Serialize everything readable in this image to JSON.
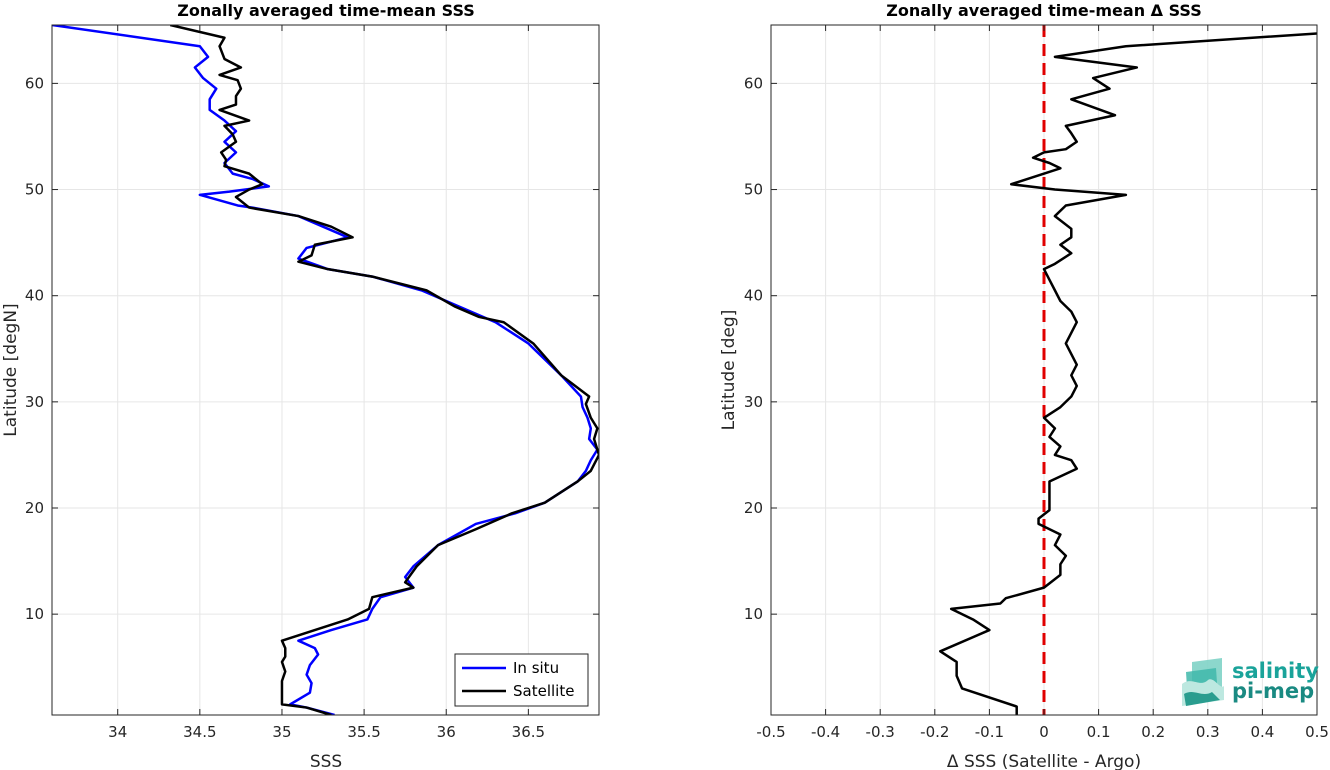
{
  "charts": [
    {
      "title": "Zonally averaged time-mean SSS",
      "xlabel": "SSS",
      "ylabel": "Latitude [degN]",
      "xlim": [
        33.6,
        36.93
      ],
      "ylim": [
        0.5,
        65.5
      ],
      "xticks": [
        34,
        34.5,
        35,
        35.5,
        36,
        36.5
      ],
      "xtick_labels": [
        "34",
        "34.5",
        "35",
        "35.5",
        "36",
        "36.5"
      ],
      "yticks": [
        10,
        20,
        30,
        40,
        50,
        60
      ],
      "ytick_labels": [
        "10",
        "20",
        "30",
        "40",
        "50",
        "60"
      ],
      "legend": {
        "entries": [
          "In situ",
          "Satellite"
        ],
        "position": "bottom-right"
      }
    },
    {
      "title": "Zonally averaged time-mean Δ SSS",
      "xlabel": "Δ SSS (Satellite - Argo)",
      "ylabel": "Latitude [deg]",
      "xlim": [
        -0.5,
        0.5
      ],
      "ylim": [
        0.5,
        65.5
      ],
      "xticks": [
        -0.5,
        -0.4,
        -0.3,
        -0.2,
        -0.1,
        0,
        0.1,
        0.2,
        0.3,
        0.4,
        0.5
      ],
      "xtick_labels": [
        "-0.5",
        "-0.4",
        "-0.3",
        "-0.2",
        "-0.1",
        "0",
        "0.1",
        "0.2",
        "0.3",
        "0.4",
        "0.5"
      ],
      "yticks": [
        10,
        20,
        30,
        40,
        50,
        60
      ],
      "ytick_labels": [
        "10",
        "20",
        "30",
        "40",
        "50",
        "60"
      ]
    }
  ],
  "logo": {
    "line1": "salinity",
    "line2": "pi-mep",
    "color": "#1aa39a"
  },
  "chart_data": [
    {
      "type": "line",
      "title": "Zonally averaged time-mean SSS",
      "xlabel": "SSS",
      "ylabel": "Latitude [degN]",
      "xlim": [
        33.6,
        36.93
      ],
      "ylim": [
        0.5,
        65.5
      ],
      "grid": true,
      "legend_position": "bottom-right",
      "series": [
        {
          "name": "In situ",
          "color": "#0000ff",
          "points": [
            [
              33.6,
              65.5
            ],
            [
              34.5,
              63.5
            ],
            [
              34.55,
              62.5
            ],
            [
              34.47,
              61.5
            ],
            [
              34.52,
              60.5
            ],
            [
              34.6,
              59.5
            ],
            [
              34.56,
              58.5
            ],
            [
              34.56,
              57.5
            ],
            [
              34.65,
              56.5
            ],
            [
              34.72,
              55.5
            ],
            [
              34.65,
              54.5
            ],
            [
              34.72,
              53.5
            ],
            [
              34.65,
              52.5
            ],
            [
              34.7,
              51.5
            ],
            [
              34.82,
              51.0
            ],
            [
              34.92,
              50.3
            ],
            [
              34.68,
              49.8
            ],
            [
              34.5,
              49.5
            ],
            [
              34.73,
              48.5
            ],
            [
              34.82,
              48.3
            ],
            [
              35.1,
              47.5
            ],
            [
              35.25,
              46.5
            ],
            [
              35.4,
              45.5
            ],
            [
              35.15,
              44.5
            ],
            [
              35.1,
              43.5
            ],
            [
              35.28,
              42.5
            ],
            [
              35.55,
              41.8
            ],
            [
              35.85,
              40.5
            ],
            [
              36.0,
              39.5
            ],
            [
              36.15,
              38.5
            ],
            [
              36.3,
              37.5
            ],
            [
              36.5,
              35.5
            ],
            [
              36.7,
              32.5
            ],
            [
              36.82,
              30.5
            ],
            [
              36.83,
              29.5
            ],
            [
              36.86,
              28.5
            ],
            [
              36.88,
              27.5
            ],
            [
              36.87,
              26.5
            ],
            [
              36.92,
              25.5
            ],
            [
              36.88,
              24.5
            ],
            [
              36.85,
              23.5
            ],
            [
              36.8,
              22.5
            ],
            [
              36.6,
              20.5
            ],
            [
              36.42,
              19.5
            ],
            [
              36.18,
              18.5
            ],
            [
              35.95,
              16.5
            ],
            [
              35.8,
              14.5
            ],
            [
              35.75,
              13.5
            ],
            [
              35.8,
              12.5
            ],
            [
              35.6,
              11.6
            ],
            [
              35.55,
              10.5
            ],
            [
              35.52,
              9.5
            ],
            [
              35.3,
              8.5
            ],
            [
              35.1,
              7.5
            ],
            [
              35.2,
              6.8
            ],
            [
              35.22,
              6.2
            ],
            [
              35.17,
              5.2
            ],
            [
              35.15,
              4.3
            ],
            [
              35.18,
              3.5
            ],
            [
              35.17,
              2.6
            ],
            [
              35.05,
              1.5
            ],
            [
              35.15,
              1.2
            ],
            [
              35.32,
              0.5
            ]
          ]
        },
        {
          "name": "Satellite",
          "color": "#000000",
          "points": [
            [
              34.32,
              65.5
            ],
            [
              34.65,
              64.3
            ],
            [
              34.62,
              63.5
            ],
            [
              34.65,
              62.3
            ],
            [
              34.75,
              61.5
            ],
            [
              34.62,
              60.8
            ],
            [
              34.73,
              60.3
            ],
            [
              34.75,
              59.5
            ],
            [
              34.72,
              58.8
            ],
            [
              34.72,
              58.0
            ],
            [
              34.62,
              57.5
            ],
            [
              34.8,
              56.5
            ],
            [
              34.65,
              56.0
            ],
            [
              34.7,
              55.2
            ],
            [
              34.72,
              54.5
            ],
            [
              34.63,
              53.5
            ],
            [
              34.66,
              52.8
            ],
            [
              34.65,
              52.2
            ],
            [
              34.8,
              51.5
            ],
            [
              34.88,
              50.5
            ],
            [
              34.8,
              50.0
            ],
            [
              34.72,
              49.3
            ],
            [
              34.8,
              48.3
            ],
            [
              35.1,
              47.5
            ],
            [
              35.3,
              46.5
            ],
            [
              35.43,
              45.5
            ],
            [
              35.2,
              44.8
            ],
            [
              35.18,
              43.8
            ],
            [
              35.1,
              43.2
            ],
            [
              35.28,
              42.5
            ],
            [
              35.55,
              41.8
            ],
            [
              35.88,
              40.5
            ],
            [
              36.05,
              39.0
            ],
            [
              36.2,
              38.0
            ],
            [
              36.35,
              37.5
            ],
            [
              36.53,
              35.5
            ],
            [
              36.7,
              32.5
            ],
            [
              36.87,
              30.5
            ],
            [
              36.85,
              29.8
            ],
            [
              36.88,
              28.5
            ],
            [
              36.92,
              27.5
            ],
            [
              36.9,
              26.5
            ],
            [
              36.93,
              25.0
            ],
            [
              36.88,
              23.5
            ],
            [
              36.8,
              22.5
            ],
            [
              36.6,
              20.5
            ],
            [
              36.4,
              19.5
            ],
            [
              36.18,
              18.0
            ],
            [
              35.95,
              16.5
            ],
            [
              35.82,
              14.5
            ],
            [
              35.75,
              13.0
            ],
            [
              35.8,
              12.5
            ],
            [
              35.55,
              11.6
            ],
            [
              35.53,
              10.5
            ],
            [
              35.4,
              9.5
            ],
            [
              35.2,
              8.5
            ],
            [
              35.0,
              7.5
            ],
            [
              35.02,
              6.8
            ],
            [
              35.02,
              6.0
            ],
            [
              35.0,
              5.5
            ],
            [
              35.02,
              4.6
            ],
            [
              35.0,
              3.7
            ],
            [
              35.0,
              2.4
            ],
            [
              35.0,
              1.5
            ],
            [
              35.15,
              1.2
            ],
            [
              35.3,
              0.5
            ]
          ]
        }
      ]
    },
    {
      "type": "line",
      "title": "Zonally averaged time-mean Δ SSS",
      "xlabel": "Δ SSS (Satellite - Argo)",
      "ylabel": "Latitude [deg]",
      "xlim": [
        -0.5,
        0.5
      ],
      "ylim": [
        0.5,
        65.5
      ],
      "grid": true,
      "reference_line": {
        "x": 0,
        "color": "#e00000",
        "style": "dashed"
      },
      "series": [
        {
          "color": "#000000",
          "points": [
            [
              0.5,
              64.7
            ],
            [
              0.15,
              63.5
            ],
            [
              0.02,
              62.5
            ],
            [
              0.17,
              61.5
            ],
            [
              0.09,
              60.5
            ],
            [
              0.12,
              59.5
            ],
            [
              0.05,
              58.5
            ],
            [
              0.13,
              57.0
            ],
            [
              0.04,
              56.0
            ],
            [
              0.05,
              55.3
            ],
            [
              0.06,
              54.5
            ],
            [
              0.04,
              53.8
            ],
            [
              0.0,
              53.5
            ],
            [
              -0.02,
              53.0
            ],
            [
              0.01,
              52.5
            ],
            [
              0.03,
              52.0
            ],
            [
              -0.06,
              50.5
            ],
            [
              0.02,
              50.0
            ],
            [
              0.15,
              49.5
            ],
            [
              0.04,
              48.5
            ],
            [
              0.02,
              47.5
            ],
            [
              0.05,
              46.3
            ],
            [
              0.05,
              45.5
            ],
            [
              0.03,
              44.8
            ],
            [
              0.05,
              44.0
            ],
            [
              0.02,
              43.0
            ],
            [
              0.0,
              42.5
            ],
            [
              0.01,
              41.5
            ],
            [
              0.02,
              40.5
            ],
            [
              0.03,
              39.5
            ],
            [
              0.05,
              38.5
            ],
            [
              0.06,
              37.5
            ],
            [
              0.05,
              36.5
            ],
            [
              0.04,
              35.5
            ],
            [
              0.05,
              34.5
            ],
            [
              0.06,
              33.5
            ],
            [
              0.05,
              32.5
            ],
            [
              0.06,
              31.5
            ],
            [
              0.05,
              30.5
            ],
            [
              0.03,
              29.5
            ],
            [
              0.0,
              28.5
            ],
            [
              0.02,
              27.5
            ],
            [
              0.01,
              26.7
            ],
            [
              0.03,
              25.8
            ],
            [
              0.02,
              25.0
            ],
            [
              0.05,
              24.5
            ],
            [
              0.06,
              23.7
            ],
            [
              0.01,
              22.5
            ],
            [
              0.01,
              21.5
            ],
            [
              0.01,
              20.5
            ],
            [
              0.01,
              19.8
            ],
            [
              -0.01,
              19.0
            ],
            [
              -0.01,
              18.5
            ],
            [
              0.03,
              17.5
            ],
            [
              0.02,
              16.5
            ],
            [
              0.04,
              15.5
            ],
            [
              0.03,
              14.7
            ],
            [
              0.03,
              13.7
            ],
            [
              0.0,
              12.5
            ],
            [
              -0.07,
              11.5
            ],
            [
              -0.08,
              11.0
            ],
            [
              -0.17,
              10.5
            ],
            [
              -0.13,
              9.5
            ],
            [
              -0.1,
              8.5
            ],
            [
              -0.19,
              6.5
            ],
            [
              -0.16,
              5.5
            ],
            [
              -0.16,
              4.2
            ],
            [
              -0.15,
              3.0
            ],
            [
              -0.05,
              1.3
            ],
            [
              -0.05,
              0.5
            ]
          ]
        }
      ]
    }
  ]
}
